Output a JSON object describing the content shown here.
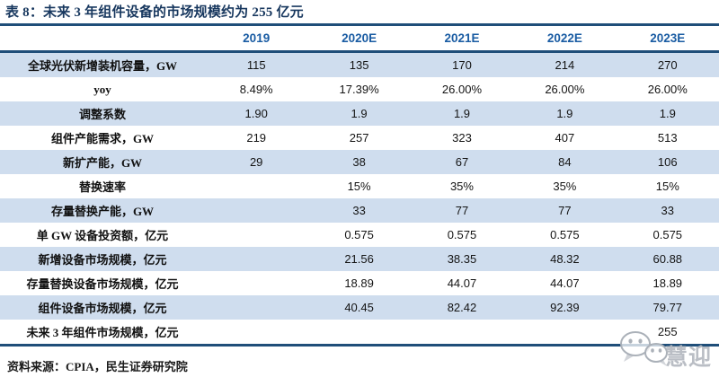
{
  "title": "表 8：未来 3 年组件设备的市场规模约为 255 亿元",
  "chart_data": {
    "type": "table",
    "columns": [
      "",
      "2019",
      "2020E",
      "2021E",
      "2022E",
      "2023E"
    ],
    "rows": [
      {
        "label": "全球光伏新增装机容量，GW",
        "values": [
          "115",
          "135",
          "170",
          "214",
          "270"
        ]
      },
      {
        "label": "yoy",
        "values": [
          "8.49%",
          "17.39%",
          "26.00%",
          "26.00%",
          "26.00%"
        ]
      },
      {
        "label": "调整系数",
        "values": [
          "1.90",
          "1.9",
          "1.9",
          "1.9",
          "1.9"
        ]
      },
      {
        "label": "组件产能需求，GW",
        "values": [
          "219",
          "257",
          "323",
          "407",
          "513"
        ]
      },
      {
        "label": "新扩产能，GW",
        "values": [
          "29",
          "38",
          "67",
          "84",
          "106"
        ]
      },
      {
        "label": "替换速率",
        "values": [
          "",
          "15%",
          "35%",
          "35%",
          "15%"
        ]
      },
      {
        "label": "存量替换产能，GW",
        "values": [
          "",
          "33",
          "77",
          "77",
          "33"
        ]
      },
      {
        "label": "单 GW 设备投资额，亿元",
        "values": [
          "",
          "0.575",
          "0.575",
          "0.575",
          "0.575"
        ]
      },
      {
        "label": "新增设备市场规模，亿元",
        "values": [
          "",
          "21.56",
          "38.35",
          "48.32",
          "60.88"
        ]
      },
      {
        "label": "存量替换设备市场规模，亿元",
        "values": [
          "",
          "18.89",
          "44.07",
          "44.07",
          "18.89"
        ]
      },
      {
        "label": "组件设备市场规模，亿元",
        "values": [
          "",
          "40.45",
          "82.42",
          "92.39",
          "79.77"
        ]
      },
      {
        "label": "未来 3 年组件市场规模，亿元",
        "values": [
          "",
          "",
          "",
          "",
          "255"
        ]
      }
    ],
    "banded_row_indices": [
      0,
      2,
      4,
      6,
      8,
      10
    ]
  },
  "footer": {
    "source": "资料来源：CPIA，民生证券研究院"
  },
  "watermark": {
    "icon": "wechat-icon",
    "text": "慧迎"
  },
  "colors": {
    "title_navy": "#17375E",
    "rule_blue": "#1F4E79",
    "header_text_blue": "#1A5CA3",
    "band_blue": "#CFDDEE"
  }
}
